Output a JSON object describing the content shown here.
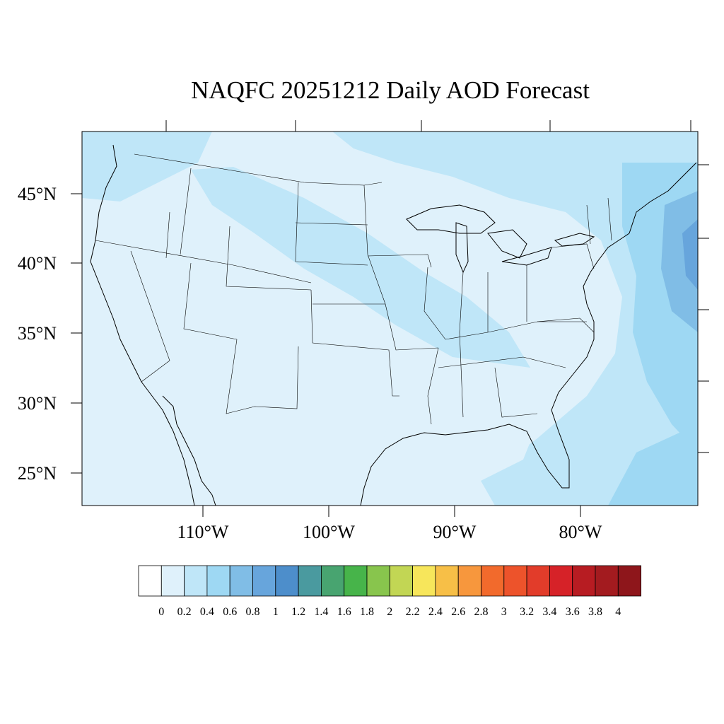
{
  "title": "NAQFC 20251212 Daily AOD Forecast",
  "map": {
    "lat_labels": [
      "45°N",
      "40°N",
      "35°N",
      "30°N",
      "25°N"
    ],
    "lon_labels": [
      "110°W",
      "100°W",
      "90°W",
      "80°W"
    ],
    "background_color": "#dff1fb"
  },
  "colorbar": {
    "levels": [
      "0",
      "0.2",
      "0.4",
      "0.6",
      "0.8",
      "1",
      "1.2",
      "1.4",
      "1.6",
      "1.8",
      "2",
      "2.2",
      "2.4",
      "2.6",
      "2.8",
      "3",
      "3.2",
      "3.4",
      "3.6",
      "3.8",
      "4"
    ],
    "colors": [
      "#ffffff",
      "#dff1fb",
      "#bfe6f8",
      "#9ed8f3",
      "#80bde6",
      "#67a5dc",
      "#4d8ecb",
      "#4a9a9f",
      "#48a470",
      "#47b44a",
      "#88c54d",
      "#c2d654",
      "#f7e65b",
      "#f7bf47",
      "#f7973d",
      "#f26a2c",
      "#ed532b",
      "#e23c2a",
      "#d62228",
      "#b71c22",
      "#a31b1f",
      "#8e161b"
    ]
  }
}
